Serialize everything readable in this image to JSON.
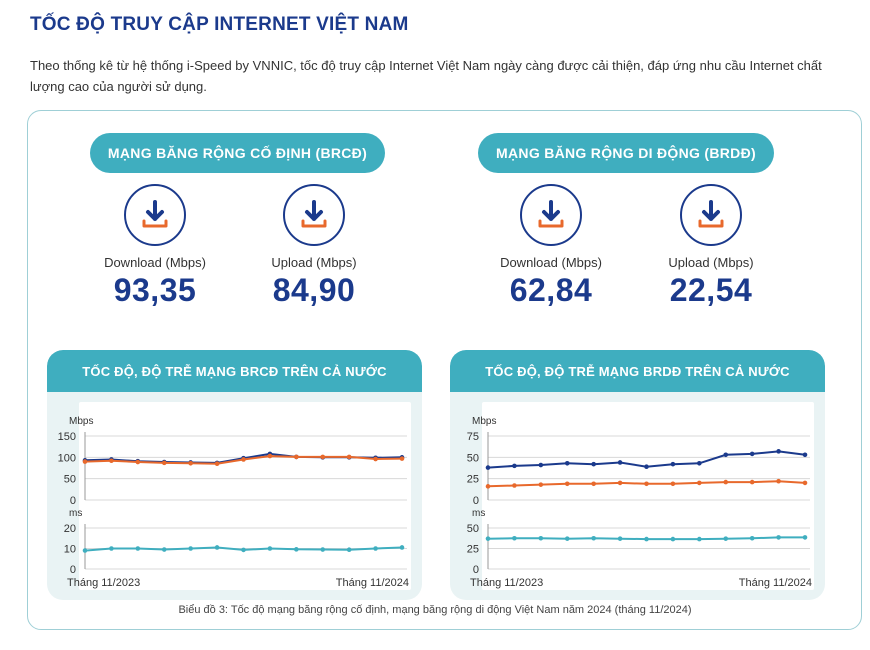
{
  "title": "TỐC ĐỘ TRUY CẬP INTERNET VIỆT NAM",
  "intro": "Theo thống kê từ hệ thống i-Speed by VNNIC, tốc độ truy cập Internet Việt Nam ngày càng được cải thiện, đáp ứng nhu cầu Internet chất lượng cao của người sử dụng.",
  "fixed": {
    "heading": "MẠNG BĂNG RỘNG CỐ ĐỊNH (BRCĐ)",
    "download_label": "Download (Mbps)",
    "download_value": "93,35",
    "upload_label": "Upload (Mbps)",
    "upload_value": "84,90"
  },
  "mobile": {
    "heading": "MẠNG BĂNG RỘNG DI ĐỘNG (BRDĐ)",
    "download_label": "Download (Mbps)",
    "download_value": "62,84",
    "upload_label": "Upload (Mbps)",
    "upload_value": "22,54"
  },
  "icons": {
    "download": "download-icon",
    "upload": "upload-icon"
  },
  "colors": {
    "navy": "#1b3a8c",
    "orange": "#e8692c",
    "teal": "#3faebf",
    "panel_bg": "#e9f3f4"
  },
  "caption": "Biểu đồ 3: Tốc độ mạng băng rộng cố định, mạng băng rộng di động Việt Nam năm 2024 (tháng 11/2024)",
  "chart_data": [
    {
      "type": "line",
      "title": "TỐC ĐỘ, ĐỘ TRỄ MẠNG BRCĐ TRÊN CẢ NƯỚC",
      "x_start_label": "Tháng 11/2023",
      "x_end_label": "Tháng 11/2024",
      "speed": {
        "ylabel": "Mbps",
        "ylim": [
          0,
          150
        ],
        "yticks": [
          0,
          50,
          100,
          150
        ],
        "series": [
          {
            "color": "#1b3a8c",
            "values": [
              93,
              95,
              91,
              89,
              88,
              87,
              98,
              108,
              101,
              100,
              100,
              99,
              100
            ]
          },
          {
            "color": "#e8692c",
            "values": [
              90,
              92,
              89,
              87,
              86,
              85,
              95,
              103,
              101,
              101,
              101,
              96,
              97
            ]
          }
        ]
      },
      "latency": {
        "ylabel": "ms",
        "ylim": [
          0,
          20
        ],
        "yticks": [
          0,
          10,
          20
        ],
        "series": [
          {
            "color": "#3faebf",
            "values": [
              9,
              10,
              10,
              9.5,
              10,
              10.5,
              9.3,
              10,
              9.6,
              9.5,
              9.4,
              10,
              10.5
            ]
          }
        ]
      }
    },
    {
      "type": "line",
      "title": "TỐC ĐỘ, ĐỘ TRỄ MẠNG BRDĐ TRÊN CẢ NƯỚC",
      "x_start_label": "Tháng 11/2023",
      "x_end_label": "Tháng 11/2024",
      "speed": {
        "ylabel": "Mbps",
        "ylim": [
          0,
          75
        ],
        "yticks": [
          0,
          25,
          50,
          75
        ],
        "series": [
          {
            "color": "#1b3a8c",
            "values": [
              38,
              40,
              41,
              43,
              42,
              44,
              39,
              42,
              43,
              53,
              54,
              57,
              53
            ]
          },
          {
            "color": "#e8692c",
            "values": [
              16,
              17,
              18,
              19,
              19,
              20,
              19,
              19,
              20,
              21,
              21,
              22,
              20
            ]
          }
        ]
      },
      "latency": {
        "ylabel": "ms",
        "ylim": [
          0,
          50
        ],
        "yticks": [
          0,
          25,
          50
        ],
        "series": [
          {
            "color": "#3faebf",
            "values": [
              37,
              37.5,
              37.5,
              37,
              37.5,
              37,
              36.5,
              36.5,
              36.5,
              37,
              37.5,
              38.5,
              38.5
            ]
          }
        ]
      }
    }
  ]
}
